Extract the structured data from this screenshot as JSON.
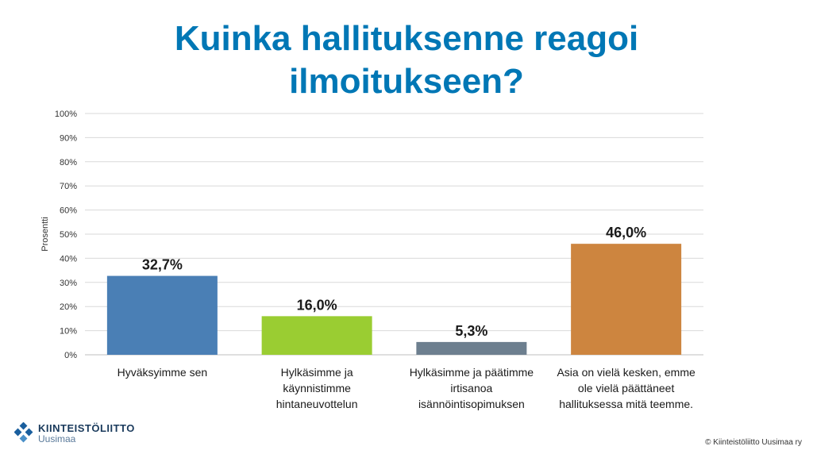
{
  "title_line1": "Kuinka hallituksenne reagoi",
  "title_line2": "ilmoitukseen?",
  "chart_data": {
    "type": "bar",
    "title": "Kuinka hallituksenne reagoi ilmoitukseen?",
    "ylabel": "Prosentti",
    "ylim": [
      0,
      100
    ],
    "yticks": [
      "0%",
      "10%",
      "20%",
      "30%",
      "40%",
      "50%",
      "60%",
      "70%",
      "80%",
      "90%",
      "100%"
    ],
    "grid": true,
    "categories": [
      [
        "Hyväksyimme sen"
      ],
      [
        "Hylkäsimme ja",
        "käynnistimme",
        "hintaneuvottelun"
      ],
      [
        "Hylkäsimme ja päätimme",
        "irtisanoa",
        "isännöintisopimuksen"
      ],
      [
        "Asia on vielä kesken, emme",
        "ole vielä päättäneet",
        "hallituksessa mitä teemme."
      ]
    ],
    "values": [
      32.7,
      16.0,
      5.3,
      46.0
    ],
    "data_labels": [
      "32,7%",
      "16,0%",
      "5,3%",
      "46,0%"
    ],
    "colors": [
      "#4a7fb5",
      "#9acd32",
      "#6d7f8f",
      "#cd853f"
    ]
  },
  "logo": {
    "line1": "KIINTEISTÖLIITTO",
    "line2": "Uusimaa",
    "color": "#1a5f9e"
  },
  "copyright": "© Kiinteistöliitto Uusimaa ry"
}
